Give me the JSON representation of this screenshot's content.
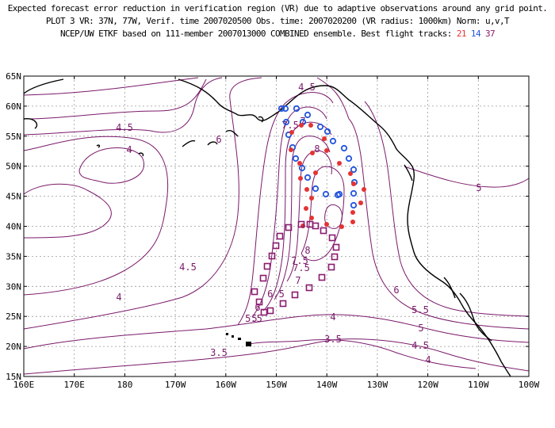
{
  "header": {
    "line1": "Expected forecast error reduction in verification region (VR) due to adaptive observations around any grid point.",
    "line2": "PLOT 3 VR: 37N, 77W, Verif. time 2007020500 Obs. time: 2007020200 (VR radius: 1000km) Norm: u,v,T",
    "line3_prefix": "NCEP/UW ETKF based on 111-member 2007013000 COMBINED ensemble.  Best flight tracks:",
    "track_a": "21",
    "track_b": "14",
    "track_c": "37"
  },
  "colors": {
    "contour": "#7a1a6a",
    "track_21": "#e53333",
    "track_14": "#2255dd",
    "track_37": "#8a1a6e",
    "coast": "#000000",
    "grid": "#999999"
  },
  "axes": {
    "lon_labels": [
      "160E",
      "170E",
      "180",
      "170W",
      "160W",
      "150W",
      "140W",
      "130W",
      "120W",
      "110W",
      "100W"
    ],
    "lat_labels": [
      "15N",
      "20N",
      "25N",
      "30N",
      "35N",
      "40N",
      "45N",
      "50N",
      "55N",
      "60N",
      "65N"
    ]
  },
  "contour_labels": [
    "3.5",
    "3.5",
    "4",
    "4",
    "4",
    "4",
    "4.5",
    "4.5",
    "4.5",
    "4.5",
    "5",
    "5",
    "5",
    "5.5",
    "5.5",
    "6",
    "6",
    "6",
    "6.5",
    "7",
    "7",
    "7.5",
    "7.5",
    "7.5",
    "8",
    "8"
  ]
}
